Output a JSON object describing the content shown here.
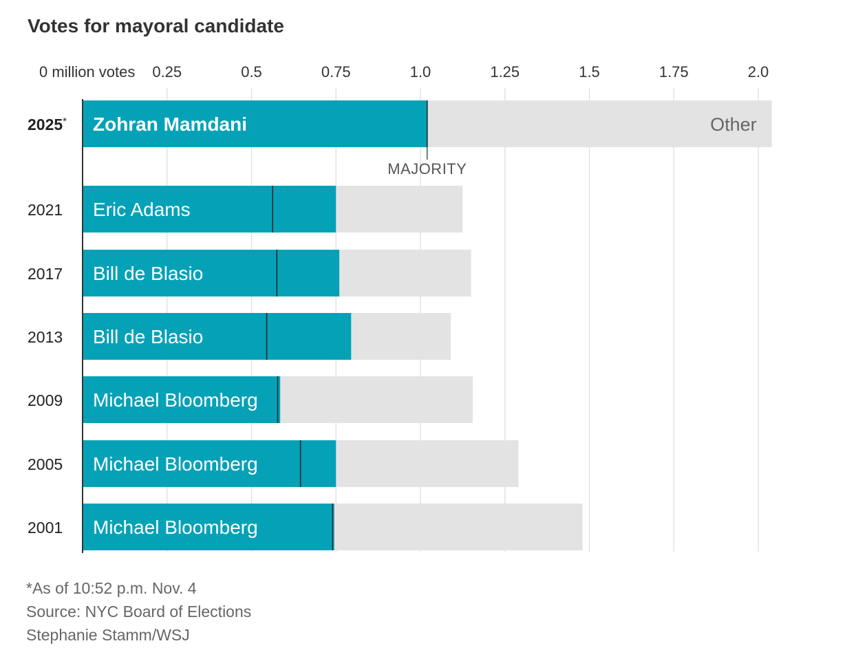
{
  "chart_data": {
    "type": "bar",
    "orientation": "horizontal",
    "stacked": true,
    "title": "Votes for mayoral candidate",
    "xlim": [
      0,
      2.0
    ],
    "xticks": [
      0,
      0.25,
      0.5,
      0.75,
      1.0,
      1.25,
      1.5,
      1.75,
      2.0
    ],
    "xtick_labels": [
      "0 million votes",
      "0.25",
      "0.5",
      "0.75",
      "1.0",
      "1.25",
      "1.5",
      "1.75",
      "2.0"
    ],
    "grid": true,
    "categories": [
      "2025",
      "2021",
      "2017",
      "2013",
      "2009",
      "2005",
      "2001"
    ],
    "category_marks": [
      "*",
      "",
      "",
      "",
      "",
      "",
      ""
    ],
    "highlight_category": "2025",
    "winners": [
      "Zohran Mamdani",
      "Eric Adams",
      "Bill de Blasio",
      "Bill de Blasio",
      "Michael Bloomberg",
      "Michael Bloomberg",
      "Michael Bloomberg"
    ],
    "series": [
      {
        "values": [
          1.02,
          0.75,
          0.76,
          0.795,
          0.585,
          0.75,
          0.745
        ]
      },
      {
        "name": "Other",
        "values": [
          1.02,
          0.375,
          0.39,
          0.295,
          0.57,
          0.54,
          0.735
        ]
      }
    ],
    "majority": [
      1.02,
      0.5625,
      0.575,
      0.545,
      0.5775,
      0.645,
      0.74
    ],
    "annotations": [
      {
        "text": "MAJORITY",
        "category": "2025"
      }
    ],
    "colors": {
      "winner": "#05a2b7",
      "other": "#e3e3e4",
      "majority_line": "#1a2a30"
    }
  },
  "footnotes": {
    "note": "*As of 10:52 p.m. Nov. 4",
    "source": "Source: NYC Board of Elections",
    "credit": "Stephanie Stamm/WSJ"
  }
}
